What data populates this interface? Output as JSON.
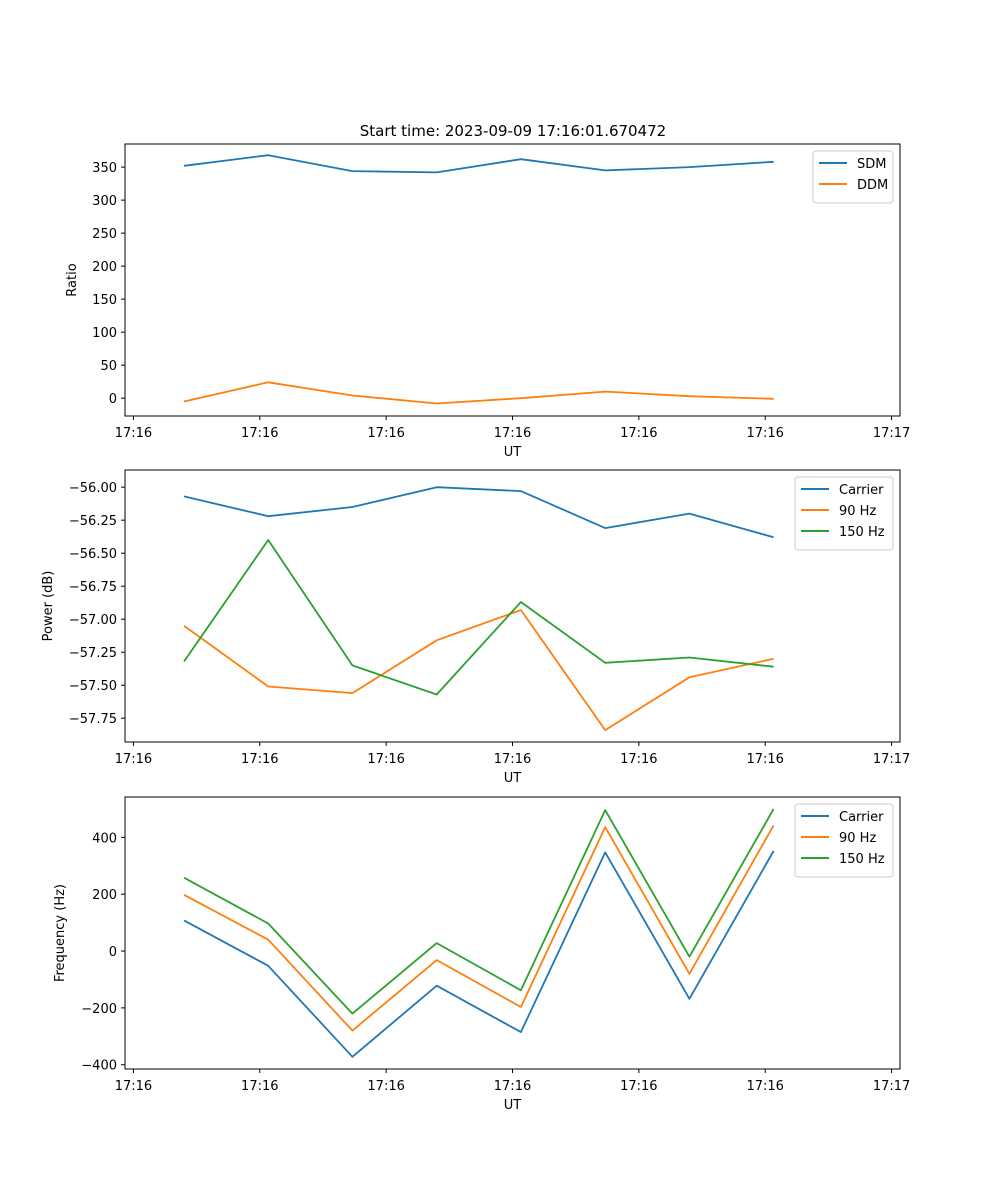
{
  "figure_title": "Start time: 2023-09-09 17:16:01.670472",
  "colors": {
    "blue": "#1f77b4",
    "orange": "#ff7f0e",
    "green": "#2ca02c"
  },
  "chart_data": [
    {
      "type": "line",
      "title": "Start time: 2023-09-09 17:16:01.670472",
      "xlabel": "UT",
      "ylabel": "Ratio",
      "x_index": [
        0,
        1,
        2,
        3,
        4,
        5,
        6,
        7
      ],
      "xlim": [
        -0.7,
        8.5
      ],
      "x_ticks": [
        -0.6,
        0.9,
        2.4,
        3.9,
        5.4,
        6.9,
        8.4
      ],
      "x_tick_labels": [
        "17:16",
        "17:16",
        "17:16",
        "17:16",
        "17:16",
        "17:16",
        "17:17"
      ],
      "ylim": [
        -27,
        385
      ],
      "y_ticks": [
        0,
        50,
        100,
        150,
        200,
        250,
        300,
        350
      ],
      "y_tick_labels": [
        "0",
        "50",
        "100",
        "150",
        "200",
        "250",
        "300",
        "350"
      ],
      "legend_position": "top-right",
      "series": [
        {
          "name": "SDM",
          "color": "#1f77b4",
          "values": [
            352,
            368,
            344,
            342,
            362,
            345,
            350,
            358
          ]
        },
        {
          "name": "DDM",
          "color": "#ff7f0e",
          "values": [
            -5,
            24,
            4,
            -8,
            0,
            10,
            3,
            -1
          ]
        }
      ]
    },
    {
      "type": "line",
      "title": "",
      "xlabel": "UT",
      "ylabel": "Power (dB)",
      "x_index": [
        0,
        1,
        2,
        3,
        4,
        5,
        6,
        7
      ],
      "xlim": [
        -0.7,
        8.5
      ],
      "x_ticks": [
        -0.6,
        0.9,
        2.4,
        3.9,
        5.4,
        6.9,
        8.4
      ],
      "x_tick_labels": [
        "17:16",
        "17:16",
        "17:16",
        "17:16",
        "17:16",
        "17:16",
        "17:17"
      ],
      "ylim": [
        -57.93,
        -55.87
      ],
      "y_ticks": [
        -56.0,
        -56.25,
        -56.5,
        -56.75,
        -57.0,
        -57.25,
        -57.5,
        -57.75
      ],
      "y_tick_labels": [
        "−56.00",
        "−56.25",
        "−56.50",
        "−56.75",
        "−57.00",
        "−57.25",
        "−57.50",
        "−57.75"
      ],
      "legend_position": "top-right",
      "series": [
        {
          "name": "Carrier",
          "color": "#1f77b4",
          "values": [
            -56.07,
            -56.22,
            -56.15,
            -56.0,
            -56.03,
            -56.31,
            -56.2,
            -56.38
          ]
        },
        {
          "name": "90 Hz",
          "color": "#ff7f0e",
          "values": [
            -57.05,
            -57.51,
            -57.56,
            -57.16,
            -56.93,
            -57.84,
            -57.44,
            -57.3
          ]
        },
        {
          "name": "150 Hz",
          "color": "#2ca02c",
          "values": [
            -57.32,
            -56.4,
            -57.35,
            -57.57,
            -56.87,
            -57.33,
            -57.29,
            -57.36
          ]
        }
      ]
    },
    {
      "type": "line",
      "title": "",
      "xlabel": "UT",
      "ylabel": "Frequency (Hz)",
      "x_index": [
        0,
        1,
        2,
        3,
        4,
        5,
        6,
        7
      ],
      "xlim": [
        -0.7,
        8.5
      ],
      "x_ticks": [
        -0.6,
        0.9,
        2.4,
        3.9,
        5.4,
        6.9,
        8.4
      ],
      "x_tick_labels": [
        "17:16",
        "17:16",
        "17:16",
        "17:16",
        "17:16",
        "17:16",
        "17:17"
      ],
      "ylim": [
        -415,
        542
      ],
      "y_ticks": [
        -400,
        -200,
        0,
        200,
        400
      ],
      "y_tick_labels": [
        "−400",
        "−200",
        "0",
        "200",
        "400"
      ],
      "legend_position": "top-right",
      "series": [
        {
          "name": "Carrier",
          "color": "#1f77b4",
          "values": [
            108,
            -52,
            -372,
            -122,
            -285,
            347,
            -168,
            352
          ]
        },
        {
          "name": "90 Hz",
          "color": "#ff7f0e",
          "values": [
            198,
            40,
            -280,
            -32,
            -197,
            436,
            -80,
            442
          ]
        },
        {
          "name": "150 Hz",
          "color": "#2ca02c",
          "values": [
            258,
            97,
            -220,
            28,
            -138,
            496,
            -20,
            500
          ]
        }
      ]
    }
  ]
}
